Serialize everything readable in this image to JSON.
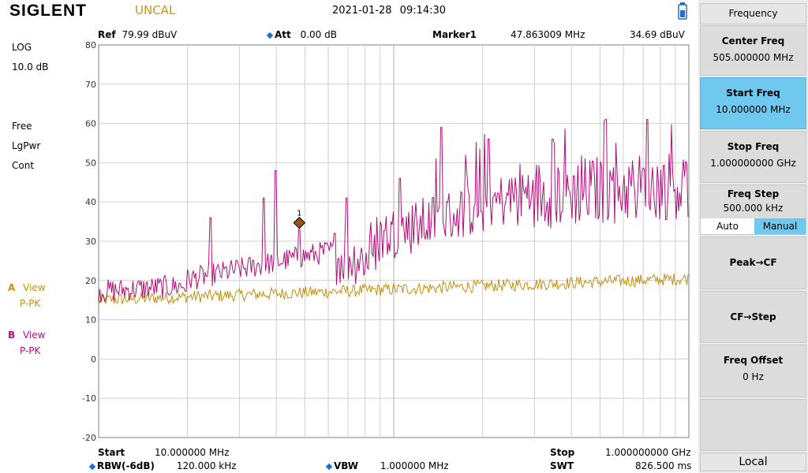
{
  "header": {
    "brand": "SIGLENT",
    "uncal": "UNCAL",
    "datetime": "2021-01-28   09:14:30"
  },
  "params": {
    "ref_label": "Ref",
    "ref_value": "79.99 dBuV",
    "att_label": "Att",
    "att_value": "0.00 dB",
    "marker_label": "Marker1",
    "marker_freq": "47.863009 MHz",
    "marker_level": "34.69 dBuV"
  },
  "left_panel": {
    "scale": "LOG",
    "div": "10.0 dB",
    "trig": "Free",
    "det": "LgPwr",
    "sweep": "Cont",
    "trace_a_letter": "A",
    "trace_a_mode": "View",
    "trace_a_det": "P-PK",
    "trace_b_letter": "B",
    "trace_b_mode": "View",
    "trace_b_det": "P-PK"
  },
  "y_ticks": [
    "80",
    "70",
    "60",
    "50",
    "40",
    "30",
    "20",
    "10",
    "0",
    "-10",
    "-20"
  ],
  "marker_number": "1",
  "footer": {
    "start_label": "Start",
    "start_value": "10.000000 MHz",
    "stop_label": "Stop",
    "stop_value": "1.000000000 GHz",
    "rbw_label": "RBW(-6dB)",
    "rbw_value": "120.000 kHz",
    "vbw_label": "VBW",
    "vbw_value": "1.000000 MHz",
    "swt_label": "SWT",
    "swt_value": "826.500 ms"
  },
  "menu": {
    "title": "Frequency",
    "center_label": "Center Freq",
    "center_value": "505.000000 MHz",
    "start_label": "Start Freq",
    "start_value": "10.000000 MHz",
    "stop_label": "Stop Freq",
    "stop_value": "1.000000000 GHz",
    "step_label": "Freq Step",
    "step_value": "500.000 kHz",
    "auto_label": "Auto",
    "manual_label": "Manual",
    "peak_cf": "Peak→CF",
    "cf_step": "CF→Step",
    "offset_label": "Freq Offset",
    "offset_value": "0 Hz",
    "local": "Local"
  },
  "colors": {
    "trace_a": "#c09010",
    "trace_b": "#b0107a",
    "selected": "#6fc9ef",
    "manual_selected": "#6fc9ef"
  }
}
